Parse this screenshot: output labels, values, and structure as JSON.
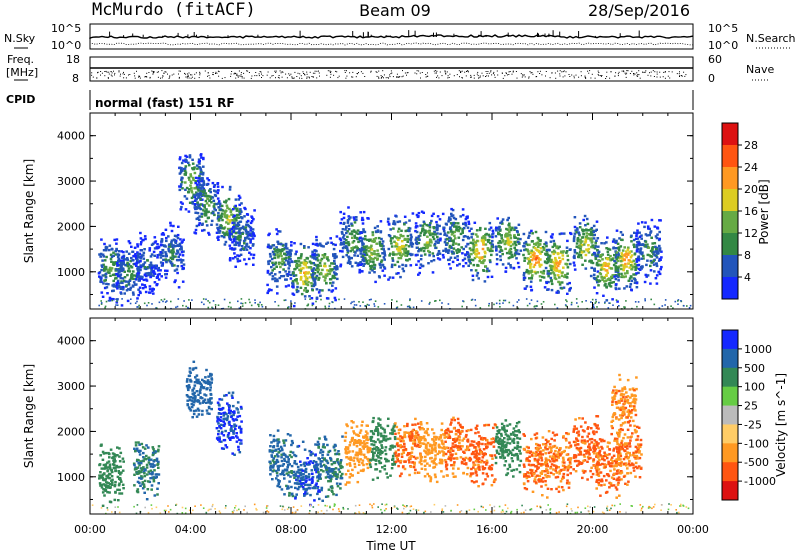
{
  "header": {
    "station": "McMurdo (fitACF)",
    "beam": "Beam 09",
    "date": "28/Sep/2016"
  },
  "summary": {
    "nsky_label": "N.Sky",
    "nsearch_label": "N.Search",
    "noise_tick_high": "10^5",
    "noise_tick_low": "10^0",
    "freq_label_1": "Freq.",
    "freq_label_2": "[MHz]",
    "freq_tick_high": "18",
    "freq_tick_low": "8",
    "nave_label": "Nave",
    "nave_tick_high": "60",
    "nave_tick_low": "0",
    "cpid_label": "CPID",
    "cpid_text": "normal (fast) 151 RF"
  },
  "chart_data": [
    {
      "type": "heatmap",
      "title": "",
      "xlabel": "Time UT",
      "ylabel": "Slant Range [km]",
      "x_ticks": [
        "00:00",
        "04:00",
        "08:00",
        "12:00",
        "16:00",
        "20:00",
        "00:00"
      ],
      "x_hours": [
        0,
        4,
        8,
        12,
        16,
        20,
        24
      ],
      "y_ticks": [
        1000,
        2000,
        3000,
        4000
      ],
      "xlim": [
        0,
        24
      ],
      "ylim": [
        180,
        4500
      ],
      "colorbar": {
        "label": "Power [dB]",
        "tick_labels": [
          "4",
          "8",
          "12",
          "16",
          "20",
          "24",
          "28"
        ],
        "colors": [
          "#1428ff",
          "#2255bb",
          "#338844",
          "#66aa44",
          "#ddcc22",
          "#ff9922",
          "#ff5511",
          "#dd1111"
        ],
        "range": [
          0,
          32
        ]
      },
      "scatter_regions": [
        {
          "t": 0.8,
          "r": 1100,
          "value": 14
        },
        {
          "t": 1.5,
          "r": 1000,
          "value": 12
        },
        {
          "t": 2.2,
          "r": 1200,
          "value": 8
        },
        {
          "t": 3.2,
          "r": 1400,
          "value": 10
        },
        {
          "t": 4.0,
          "r": 3000,
          "value": 16
        },
        {
          "t": 4.6,
          "r": 2500,
          "value": 14
        },
        {
          "t": 5.5,
          "r": 2200,
          "value": 18
        },
        {
          "t": 6.0,
          "r": 1800,
          "value": 10
        },
        {
          "t": 7.5,
          "r": 1300,
          "value": 14
        },
        {
          "t": 8.5,
          "r": 1000,
          "value": 22
        },
        {
          "t": 9.3,
          "r": 1100,
          "value": 18
        },
        {
          "t": 10.4,
          "r": 1700,
          "value": 14
        },
        {
          "t": 11.2,
          "r": 1500,
          "value": 18
        },
        {
          "t": 12.3,
          "r": 1600,
          "value": 20
        },
        {
          "t": 13.4,
          "r": 1700,
          "value": 16
        },
        {
          "t": 14.5,
          "r": 1800,
          "value": 14
        },
        {
          "t": 15.5,
          "r": 1500,
          "value": 24
        },
        {
          "t": 16.6,
          "r": 1700,
          "value": 18
        },
        {
          "t": 17.7,
          "r": 1300,
          "value": 26
        },
        {
          "t": 18.6,
          "r": 1200,
          "value": 24
        },
        {
          "t": 19.7,
          "r": 1600,
          "value": 20
        },
        {
          "t": 20.5,
          "r": 1100,
          "value": 22
        },
        {
          "t": 21.3,
          "r": 1300,
          "value": 24
        },
        {
          "t": 22.2,
          "r": 1500,
          "value": 12
        }
      ]
    },
    {
      "type": "heatmap",
      "title": "",
      "xlabel": "Time UT",
      "ylabel": "Slant Range [km]",
      "x_ticks": [
        "00:00",
        "04:00",
        "08:00",
        "12:00",
        "16:00",
        "20:00",
        "00:00"
      ],
      "x_hours": [
        0,
        4,
        8,
        12,
        16,
        20,
        24
      ],
      "y_ticks": [
        1000,
        2000,
        3000,
        4000
      ],
      "xlim": [
        0,
        24
      ],
      "ylim": [
        180,
        4500
      ],
      "colorbar": {
        "label": "Velocity [m s^-1]",
        "tick_labels": [
          "1000",
          "500",
          "100",
          "25",
          "-25",
          "-100",
          "-500",
          "-1000"
        ],
        "colors": [
          "#1428ff",
          "#2266aa",
          "#338855",
          "#66cc44",
          "#bbbbbb",
          "#ffcc66",
          "#ff9922",
          "#ff5511",
          "#dd1111"
        ]
      },
      "scatter_regions": [
        {
          "t": 0.8,
          "r": 1100,
          "value": 150
        },
        {
          "t": 2.2,
          "r": 1200,
          "value": 300
        },
        {
          "t": 4.3,
          "r": 2900,
          "value": 500
        },
        {
          "t": 5.5,
          "r": 2200,
          "value": 900
        },
        {
          "t": 7.6,
          "r": 1300,
          "value": 400
        },
        {
          "t": 8.6,
          "r": 1100,
          "value": 700
        },
        {
          "t": 9.5,
          "r": 1200,
          "value": 300
        },
        {
          "t": 10.6,
          "r": 1600,
          "value": -150
        },
        {
          "t": 11.6,
          "r": 1700,
          "value": 200
        },
        {
          "t": 12.6,
          "r": 1700,
          "value": -300
        },
        {
          "t": 13.6,
          "r": 1600,
          "value": -200
        },
        {
          "t": 14.6,
          "r": 1700,
          "value": -350
        },
        {
          "t": 15.6,
          "r": 1500,
          "value": -400
        },
        {
          "t": 16.6,
          "r": 1700,
          "value": 200
        },
        {
          "t": 17.7,
          "r": 1300,
          "value": -350
        },
        {
          "t": 18.6,
          "r": 1400,
          "value": -300
        },
        {
          "t": 19.7,
          "r": 1700,
          "value": -400
        },
        {
          "t": 20.6,
          "r": 1300,
          "value": -350
        },
        {
          "t": 21.4,
          "r": 1500,
          "value": -300
        },
        {
          "t": 21.2,
          "r": 2600,
          "value": -250
        }
      ]
    }
  ]
}
